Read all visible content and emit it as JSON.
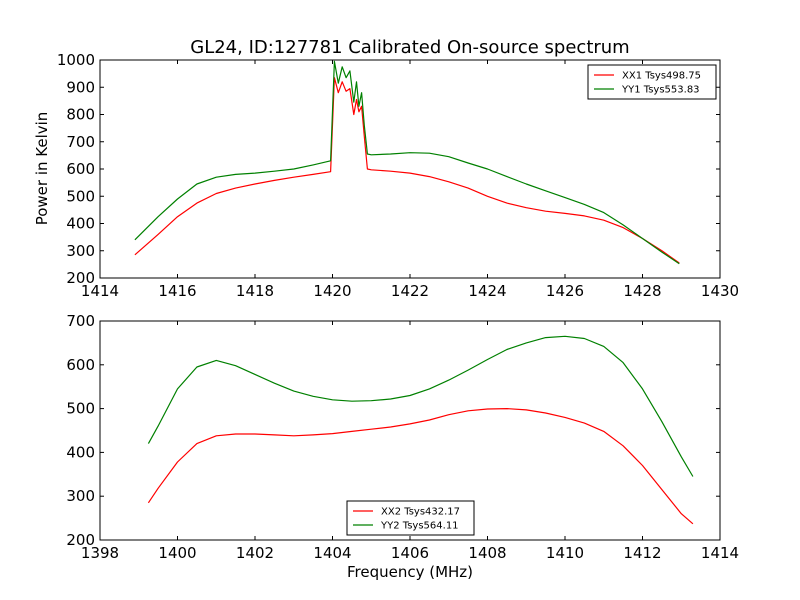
{
  "figure": {
    "title": "GL24, ID:127781 Calibrated On-source spectrum",
    "xlabel": "Frequency (MHz)",
    "ylabel": "Power in Kelvin"
  },
  "chart_data": [
    {
      "type": "line",
      "title": "GL24, ID:127781 Calibrated On-source spectrum",
      "xlabel": "",
      "ylabel": "Power in Kelvin",
      "xlim": [
        1414,
        1430
      ],
      "ylim": [
        200,
        1000
      ],
      "xticks": [
        "1414",
        "1416",
        "1418",
        "1420",
        "1422",
        "1424",
        "1426",
        "1428",
        "1430"
      ],
      "yticks": [
        "200",
        "300",
        "400",
        "500",
        "600",
        "700",
        "800",
        "900",
        "1000"
      ],
      "grid": false,
      "legend_position": "top-right",
      "series": [
        {
          "name": "XX1 Tsys498.75",
          "color": "#ff0000",
          "x": [
            1414.9,
            1415.5,
            1416.0,
            1416.5,
            1417.0,
            1417.5,
            1418.0,
            1418.5,
            1419.0,
            1419.5,
            1419.95,
            1420.05,
            1420.15,
            1420.25,
            1420.35,
            1420.45,
            1420.55,
            1420.62,
            1420.68,
            1420.75,
            1420.82,
            1420.9,
            1421.0,
            1421.5,
            1422.0,
            1422.5,
            1423.0,
            1423.5,
            1424.0,
            1424.5,
            1425.0,
            1425.5,
            1426.0,
            1426.5,
            1427.0,
            1427.5,
            1428.0,
            1428.5,
            1428.95
          ],
          "values": [
            285,
            360,
            425,
            475,
            510,
            530,
            545,
            558,
            570,
            580,
            590,
            935,
            880,
            920,
            885,
            895,
            800,
            855,
            810,
            830,
            720,
            600,
            597,
            592,
            585,
            572,
            553,
            530,
            500,
            475,
            458,
            445,
            437,
            428,
            412,
            385,
            345,
            300,
            255
          ]
        },
        {
          "name": "YY1 Tsys553.83",
          "color": "#008000",
          "x": [
            1414.9,
            1415.5,
            1416.0,
            1416.5,
            1417.0,
            1417.5,
            1418.0,
            1418.5,
            1419.0,
            1419.5,
            1419.95,
            1420.05,
            1420.15,
            1420.25,
            1420.35,
            1420.45,
            1420.55,
            1420.62,
            1420.68,
            1420.75,
            1420.82,
            1420.9,
            1421.0,
            1421.5,
            1422.0,
            1422.5,
            1423.0,
            1423.5,
            1424.0,
            1424.5,
            1425.0,
            1425.5,
            1426.0,
            1426.5,
            1427.0,
            1427.5,
            1428.0,
            1428.5,
            1428.95
          ],
          "values": [
            340,
            425,
            490,
            545,
            570,
            580,
            585,
            592,
            600,
            615,
            630,
            995,
            915,
            975,
            935,
            960,
            845,
            920,
            830,
            880,
            760,
            655,
            652,
            655,
            660,
            658,
            645,
            622,
            600,
            572,
            545,
            520,
            495,
            470,
            440,
            395,
            345,
            295,
            252
          ]
        }
      ]
    },
    {
      "type": "line",
      "title": "",
      "xlabel": "Frequency (MHz)",
      "ylabel": "",
      "xlim": [
        1398,
        1414
      ],
      "ylim": [
        200,
        700
      ],
      "xticks": [
        "1398",
        "1400",
        "1402",
        "1404",
        "1406",
        "1408",
        "1410",
        "1412",
        "1414"
      ],
      "yticks": [
        "200",
        "300",
        "400",
        "500",
        "600",
        "700"
      ],
      "grid": false,
      "legend_position": "bottom-center",
      "series": [
        {
          "name": "XX2 Tsys432.17",
          "color": "#ff0000",
          "x": [
            1399.25,
            1399.5,
            1400.0,
            1400.5,
            1401.0,
            1401.5,
            1402.0,
            1402.5,
            1403.0,
            1403.5,
            1404.0,
            1404.5,
            1405.0,
            1405.5,
            1406.0,
            1406.5,
            1407.0,
            1407.5,
            1408.0,
            1408.5,
            1409.0,
            1409.5,
            1410.0,
            1410.5,
            1411.0,
            1411.5,
            1412.0,
            1412.5,
            1413.0,
            1413.3
          ],
          "values": [
            285,
            318,
            378,
            420,
            438,
            442,
            442,
            440,
            438,
            440,
            443,
            448,
            453,
            458,
            465,
            474,
            486,
            495,
            499,
            500,
            497,
            490,
            480,
            467,
            448,
            415,
            370,
            315,
            260,
            237
          ]
        },
        {
          "name": "YY2 Tsys564.11",
          "color": "#008000",
          "x": [
            1399.25,
            1399.5,
            1400.0,
            1400.5,
            1401.0,
            1401.5,
            1402.0,
            1402.5,
            1403.0,
            1403.5,
            1404.0,
            1404.5,
            1405.0,
            1405.5,
            1406.0,
            1406.5,
            1407.0,
            1407.5,
            1408.0,
            1408.5,
            1409.0,
            1409.5,
            1410.0,
            1410.5,
            1411.0,
            1411.5,
            1412.0,
            1412.5,
            1413.0,
            1413.3
          ],
          "values": [
            420,
            460,
            545,
            595,
            610,
            598,
            578,
            558,
            540,
            528,
            520,
            517,
            518,
            522,
            530,
            545,
            565,
            588,
            612,
            635,
            650,
            662,
            665,
            660,
            642,
            605,
            545,
            470,
            390,
            345
          ]
        }
      ]
    }
  ]
}
